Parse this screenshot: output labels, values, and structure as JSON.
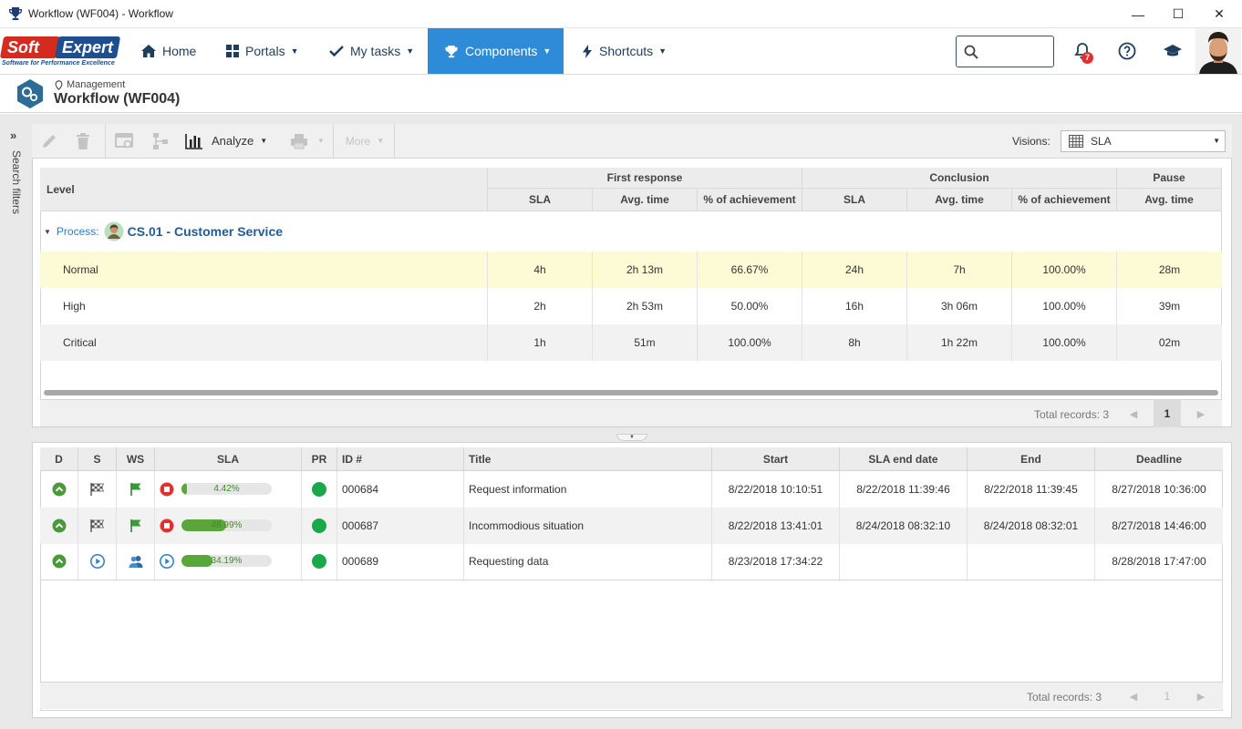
{
  "window": {
    "title": "Workflow (WF004) - Workflow",
    "minimize": "—",
    "maximize": "☐",
    "close": "✕"
  },
  "brand": {
    "name_left": "Soft",
    "name_right": "Expert",
    "tagline": "Software for Performance Excellence",
    "accent": "#2e8bd8",
    "logo_red": "#d52b1e",
    "logo_blue": "#1d4e8f"
  },
  "nav": {
    "home": "Home",
    "portals": "Portals",
    "my_tasks": "My tasks",
    "components": "Components",
    "shortcuts": "Shortcuts"
  },
  "header": {
    "search_placeholder": "",
    "notification_count": "7"
  },
  "page": {
    "breadcrumb": "Management",
    "title": "Workflow (WF004)"
  },
  "sidebar": {
    "search_filters": "Search filters"
  },
  "toolbar": {
    "analyze": "Analyze",
    "more": "More",
    "visions_label": "Visions:",
    "visions_value": "SLA"
  },
  "sla_table": {
    "col_level": "Level",
    "group_first_response": "First response",
    "group_conclusion": "Conclusion",
    "group_pause": "Pause",
    "sub_sla": "SLA",
    "sub_avg_time": "Avg. time",
    "sub_achievement": "% of achievement",
    "process_label": "Process:",
    "process_name": "CS.01 - Customer Service",
    "rows": [
      {
        "level": "Normal",
        "fr_sla": "4h",
        "fr_avg": "2h 13m",
        "fr_ach": "66.67%",
        "c_sla": "24h",
        "c_avg": "7h",
        "c_ach": "100.00%",
        "p_avg": "28m"
      },
      {
        "level": "High",
        "fr_sla": "2h",
        "fr_avg": "2h 53m",
        "fr_ach": "50.00%",
        "c_sla": "16h",
        "c_avg": "3h 06m",
        "c_ach": "100.00%",
        "p_avg": "39m"
      },
      {
        "level": "Critical",
        "fr_sla": "1h",
        "fr_avg": "51m",
        "fr_ach": "100.00%",
        "c_sla": "8h",
        "c_avg": "1h 22m",
        "c_ach": "100.00%",
        "p_avg": "02m"
      }
    ],
    "total_records": "Total records: 3",
    "current_page": "1"
  },
  "records": {
    "headers": {
      "d": "D",
      "s": "S",
      "ws": "WS",
      "sla": "SLA",
      "pr": "PR",
      "id": "ID #",
      "title": "Title",
      "start": "Start",
      "sla_end": "SLA end date",
      "end": "End",
      "deadline": "Deadline"
    },
    "rows": [
      {
        "sla_pct": "4.42%",
        "sla_value": 4.42,
        "id": "000684",
        "title": "Request information",
        "start": "8/22/2018 10:10:51",
        "sla_end": "8/22/2018 11:39:46",
        "end": "8/22/2018 11:39:45",
        "deadline": "8/27/2018 10:36:00",
        "status_icon": "stop-icon",
        "s_icon": "checkered-flag-icon",
        "ws_icon": "green-flag-icon"
      },
      {
        "sla_pct": "48.99%",
        "sla_value": 48.99,
        "id": "000687",
        "title": "Incommodious situation",
        "start": "8/22/2018 13:41:01",
        "sla_end": "8/24/2018 08:32:10",
        "end": "8/24/2018 08:32:01",
        "deadline": "8/27/2018 14:46:00",
        "status_icon": "stop-icon",
        "s_icon": "checkered-flag-icon",
        "ws_icon": "green-flag-icon"
      },
      {
        "sla_pct": "34.19%",
        "sla_value": 34.19,
        "id": "000689",
        "title": "Requesting data",
        "start": "8/23/2018 17:34:22",
        "sla_end": "",
        "end": "",
        "deadline": "8/28/2018 17:47:00",
        "status_icon": "play-icon",
        "s_icon": "play-icon",
        "ws_icon": "users-icon"
      }
    ],
    "total_records": "Total records: 3",
    "current_page": "1"
  },
  "colors": {
    "green": "#2e9e4a",
    "red": "#e0302f",
    "blue": "#2e7dc8",
    "highlight": "#fdfbd6"
  }
}
